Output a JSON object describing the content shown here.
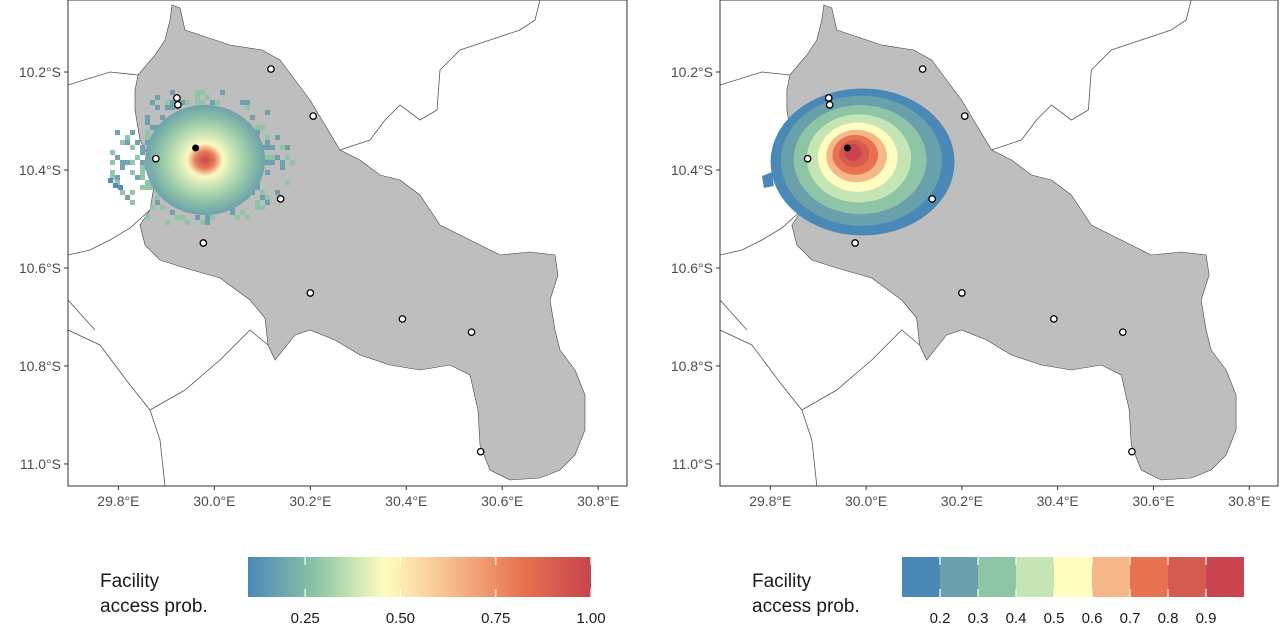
{
  "panels": [
    {
      "xlim": [
        29.695,
        30.86
      ],
      "ylim": [
        -11.045,
        -10.053
      ],
      "xticks": [
        {
          "value": 29.8,
          "label": "29.8°E"
        },
        {
          "value": 30.0,
          "label": "30.0°E"
        },
        {
          "value": 30.2,
          "label": "30.2°E"
        },
        {
          "value": 30.4,
          "label": "30.4°E"
        },
        {
          "value": 30.6,
          "label": "30.6°E"
        },
        {
          "value": 30.8,
          "label": "30.8°E"
        }
      ],
      "yticks": [
        {
          "value": -10.2,
          "label": "10.2°S"
        },
        {
          "value": -10.4,
          "label": "10.4°S"
        },
        {
          "value": -10.6,
          "label": "10.6°S"
        },
        {
          "value": -10.8,
          "label": "10.8°S"
        },
        {
          "value": -11.0,
          "label": "11.0°S"
        }
      ],
      "legend": {
        "type": "continuous",
        "title": [
          "Facility",
          "access prob."
        ],
        "lim": [
          0.1,
          1.0
        ],
        "ticks": [
          0.25,
          {
            "value": 0.5,
            "label": "0.50"
          },
          0.75,
          {
            "value": 1,
            "label": "1.00"
          }
        ],
        "colors": [
          "#4a88b8",
          "#8dc5a6",
          "#fffec0",
          "#f6b889",
          "#e8724f",
          "#c9444f"
        ]
      }
    },
    {
      "xlim": [
        29.695,
        30.86
      ],
      "ylim": [
        -11.045,
        -10.053
      ],
      "xticks": [
        {
          "value": 29.8,
          "label": "29.8°E"
        },
        {
          "value": 30.0,
          "label": "30.0°E"
        },
        {
          "value": 30.2,
          "label": "30.2°E"
        },
        {
          "value": 30.4,
          "label": "30.4°E"
        },
        {
          "value": 30.6,
          "label": "30.6°E"
        },
        {
          "value": 30.8,
          "label": "30.8°E"
        }
      ],
      "yticks": [
        {
          "value": -10.2,
          "label": "10.2°S"
        },
        {
          "value": -10.4,
          "label": "10.4°S"
        },
        {
          "value": -10.6,
          "label": "10.6°S"
        },
        {
          "value": -10.8,
          "label": "10.8°S"
        },
        {
          "value": -11.0,
          "label": "11.0°S"
        }
      ],
      "legend": {
        "type": "binned",
        "title": [
          "Facility",
          "access prob."
        ],
        "lim": [
          0.1,
          1.0
        ],
        "ticks": [
          0.2,
          0.3,
          0.4,
          0.5,
          0.6,
          0.7,
          0.8,
          0.9
        ],
        "colors": [
          "#4a88b8",
          "#6aa0ab",
          "#8dc5a6",
          "#c5e5b5",
          "#fffec0",
          "#f6b889",
          "#e8724f",
          "#d55a4f",
          "#c9444f"
        ]
      }
    }
  ],
  "facilities": {
    "lon": [
      30.118,
      29.922,
      29.924,
      30.206,
      29.878,
      30.138,
      29.977,
      30.2,
      30.392,
      30.536,
      30.555
    ],
    "lat": [
      -10.194,
      -10.253,
      -10.267,
      -10.29,
      -10.377,
      -10.459,
      -10.549,
      -10.651,
      -10.704,
      -10.731,
      -10.975
    ]
  },
  "target": {
    "lon": 29.961,
    "lat": -10.355
  }
}
